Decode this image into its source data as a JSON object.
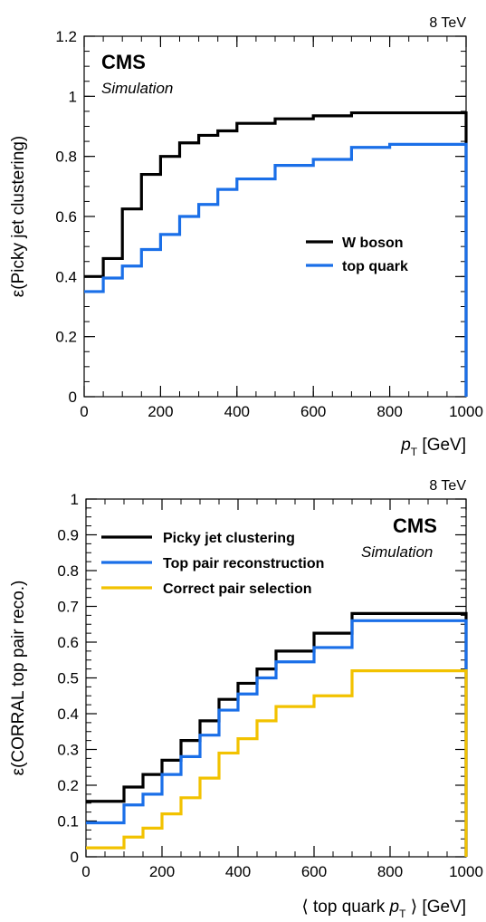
{
  "chart_data": [
    {
      "type": "line",
      "energy_label": "8 TeV",
      "experiment": "CMS",
      "status": "Simulation",
      "xlabel": {
        "var": "p",
        "sub": "T",
        "unit": "[GeV]"
      },
      "ylabel": "ε(Picky jet clustering)",
      "xlim": [
        0,
        1000
      ],
      "ylim": [
        0,
        1.2
      ],
      "x_ticks": [
        "0",
        "200",
        "400",
        "600",
        "800",
        "1000"
      ],
      "y_ticks": [
        "0",
        "0.2",
        "0.4",
        "0.6",
        "0.8",
        "1",
        "1.2"
      ],
      "bin_edges": [
        0,
        50,
        100,
        150,
        200,
        250,
        300,
        350,
        400,
        500,
        600,
        700,
        800,
        1000
      ],
      "legend_position": "right-center",
      "series": [
        {
          "name": "W boson",
          "color": "#000000",
          "values": [
            0.4,
            0.46,
            0.625,
            0.74,
            0.8,
            0.845,
            0.87,
            0.885,
            0.91,
            0.925,
            0.935,
            0.945,
            0.945
          ]
        },
        {
          "name": "top quark",
          "color": "#1a6fe8",
          "values": [
            0.35,
            0.395,
            0.435,
            0.49,
            0.54,
            0.6,
            0.64,
            0.69,
            0.725,
            0.77,
            0.79,
            0.83,
            0.84
          ]
        }
      ]
    },
    {
      "type": "line",
      "energy_label": "8 TeV",
      "experiment": "CMS",
      "status": "Simulation",
      "xlabel": {
        "pre": "⟨ top quark ",
        "var": "p",
        "sub": "T",
        "post": " ⟩ [GeV]"
      },
      "ylabel": "ε(CORRAL top pair reco.)",
      "xlim": [
        0,
        1000
      ],
      "ylim": [
        0,
        1
      ],
      "x_ticks": [
        "0",
        "200",
        "400",
        "600",
        "800",
        "1000"
      ],
      "y_ticks": [
        "0",
        "0.1",
        "0.2",
        "0.3",
        "0.4",
        "0.5",
        "0.6",
        "0.7",
        "0.8",
        "0.9",
        "1"
      ],
      "bin_edges": [
        0,
        100,
        150,
        200,
        250,
        300,
        350,
        400,
        450,
        500,
        600,
        700,
        1000
      ],
      "legend_position": "top-left",
      "series": [
        {
          "name": "Picky jet clustering",
          "color": "#000000",
          "values": [
            0.155,
            0.195,
            0.23,
            0.27,
            0.325,
            0.38,
            0.44,
            0.485,
            0.525,
            0.575,
            0.625,
            0.68
          ]
        },
        {
          "name": "Top pair reconstruction",
          "color": "#1a6fe8",
          "values": [
            0.095,
            0.145,
            0.175,
            0.23,
            0.28,
            0.34,
            0.41,
            0.455,
            0.5,
            0.545,
            0.585,
            0.66
          ]
        },
        {
          "name": "Correct pair selection",
          "color": "#f2c200",
          "values": [
            0.025,
            0.055,
            0.08,
            0.12,
            0.165,
            0.22,
            0.29,
            0.33,
            0.38,
            0.42,
            0.45,
            0.52
          ]
        }
      ]
    }
  ]
}
